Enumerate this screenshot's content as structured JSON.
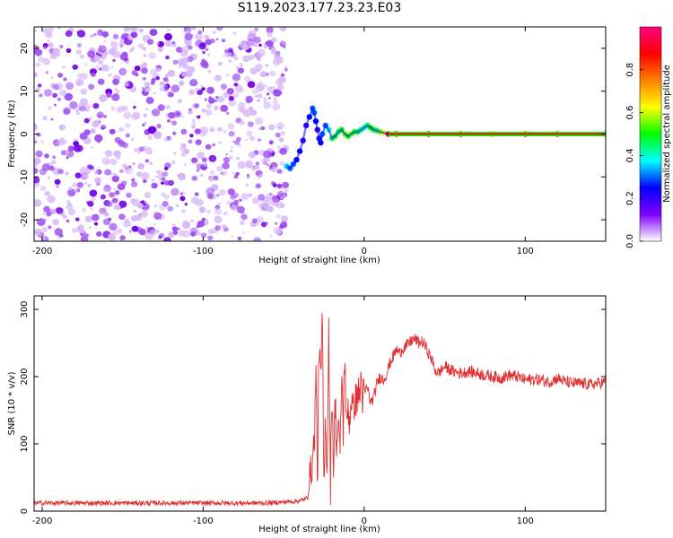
{
  "title": "S119.2023.177.23.23.E03",
  "colors": {
    "background": "#ffffff",
    "axis": "#000000",
    "snr_line": "#e03030",
    "speckle": "#8000ff",
    "colorbar_stops": [
      "#ffffff",
      "#8000ff",
      "#0000ff",
      "#00ffff",
      "#00ff00",
      "#ffff00",
      "#ff8000",
      "#ff0000",
      "#ff0080"
    ]
  },
  "chart_data": [
    {
      "name": "spectrogram",
      "type": "heatmap",
      "title": "",
      "xlabel": "Height of straight line (km)",
      "ylabel": "Frequency (Hz)",
      "xlim": [
        -205,
        150
      ],
      "ylim": [
        -25,
        25
      ],
      "xticks": [
        -200,
        -100,
        0,
        100
      ],
      "xtick_labels": [
        "-200",
        "-100",
        "0",
        "100"
      ],
      "yticks": [
        -20,
        -10,
        0,
        10,
        20
      ],
      "ytick_labels": [
        "-20",
        "-10",
        "0",
        "10",
        "20"
      ],
      "noise_region_x": [
        -205,
        -48
      ],
      "ridge": {
        "x": [
          -48,
          -46,
          -44,
          -42,
          -40,
          -38,
          -36,
          -34,
          -32,
          -31,
          -30,
          -29,
          -28,
          -27,
          -26,
          -24,
          -22,
          -20,
          -18,
          -16,
          -14,
          -12,
          -10,
          -8,
          -6,
          -4,
          -2,
          0,
          2,
          4,
          6,
          8,
          10,
          12,
          15,
          20,
          40,
          60,
          80,
          100,
          120,
          150
        ],
        "y": [
          -7.5,
          -8,
          -7,
          -6,
          -4,
          -1.5,
          2,
          4,
          6,
          5,
          3,
          1,
          -1,
          -2,
          0,
          2,
          1,
          -1,
          -0.5,
          0.5,
          1,
          0,
          -0.5,
          0,
          0.5,
          0.5,
          1,
          1.5,
          2,
          1.5,
          1,
          0.8,
          0.5,
          0.3,
          0,
          0,
          0,
          0,
          0,
          0,
          0,
          0
        ],
        "amplitude": [
          0.35,
          0.3,
          0.3,
          0.25,
          0.25,
          0.2,
          0.2,
          0.25,
          0.3,
          0.3,
          0.25,
          0.2,
          0.2,
          0.25,
          0.3,
          0.3,
          0.4,
          0.45,
          0.5,
          0.45,
          0.5,
          0.55,
          0.5,
          0.55,
          0.5,
          0.45,
          0.45,
          0.4,
          0.45,
          0.5,
          0.5,
          0.45,
          0.55,
          0.6,
          0.9,
          0.9,
          0.9,
          0.85,
          0.7,
          0.85,
          0.85,
          0.85
        ]
      },
      "colorbar": {
        "label": "Normalized spectral amplitude",
        "range": [
          0,
          1
        ],
        "ticks": [
          0.0,
          0.2,
          0.4,
          0.6,
          0.8
        ],
        "tick_labels": [
          "0.0",
          "0.2",
          "0.4",
          "0.6",
          "0.8"
        ]
      }
    },
    {
      "name": "snr",
      "type": "line",
      "title": "",
      "xlabel": "Height of straight line (km)",
      "ylabel": "SNR (10 * v/v)",
      "xlim": [
        -205,
        150
      ],
      "ylim": [
        0,
        320
      ],
      "xticks": [
        -200,
        -100,
        0,
        100
      ],
      "xtick_labels": [
        "-200",
        "-100",
        "0",
        "100"
      ],
      "yticks": [
        0,
        100,
        200,
        300
      ],
      "ytick_labels": [
        "0",
        "100",
        "200",
        "300"
      ],
      "grid": false,
      "series": [
        {
          "color": "#e03030",
          "x": [
            -205,
            -180,
            -150,
            -120,
            -90,
            -60,
            -40,
            -35,
            -33,
            -31,
            -30,
            -29,
            -28,
            -27,
            -26,
            -25,
            -24,
            -23,
            -22,
            -21,
            -20,
            -19,
            -18,
            -17,
            -16,
            -15,
            -14,
            -13,
            -12,
            -11,
            -10,
            -9,
            -8,
            -7,
            -6,
            -5,
            -4,
            -3,
            -2,
            -1,
            0,
            2,
            4,
            6,
            8,
            10,
            12,
            14,
            16,
            18,
            20,
            22,
            24,
            26,
            28,
            30,
            32,
            34,
            36,
            38,
            40,
            42,
            44,
            46,
            48,
            50,
            52,
            55,
            60,
            65,
            70,
            75,
            80,
            85,
            90,
            95,
            100,
            105,
            110,
            115,
            120,
            125,
            130,
            135,
            140,
            145,
            150
          ],
          "y": [
            12,
            12,
            12,
            12,
            12,
            12,
            15,
            20,
            60,
            100,
            210,
            40,
            260,
            180,
            300,
            20,
            150,
            50,
            280,
            30,
            190,
            60,
            170,
            90,
            140,
            70,
            210,
            120,
            250,
            110,
            160,
            130,
            175,
            140,
            170,
            160,
            180,
            165,
            200,
            170,
            175,
            185,
            160,
            170,
            190,
            200,
            195,
            205,
            220,
            230,
            240,
            235,
            242,
            245,
            250,
            255,
            255,
            250,
            252,
            245,
            235,
            225,
            210,
            205,
            210,
            215,
            212,
            208,
            205,
            208,
            205,
            202,
            200,
            198,
            202,
            200,
            195,
            196,
            195,
            192,
            198,
            192,
            190,
            190,
            188,
            190,
            192
          ]
        }
      ]
    }
  ]
}
